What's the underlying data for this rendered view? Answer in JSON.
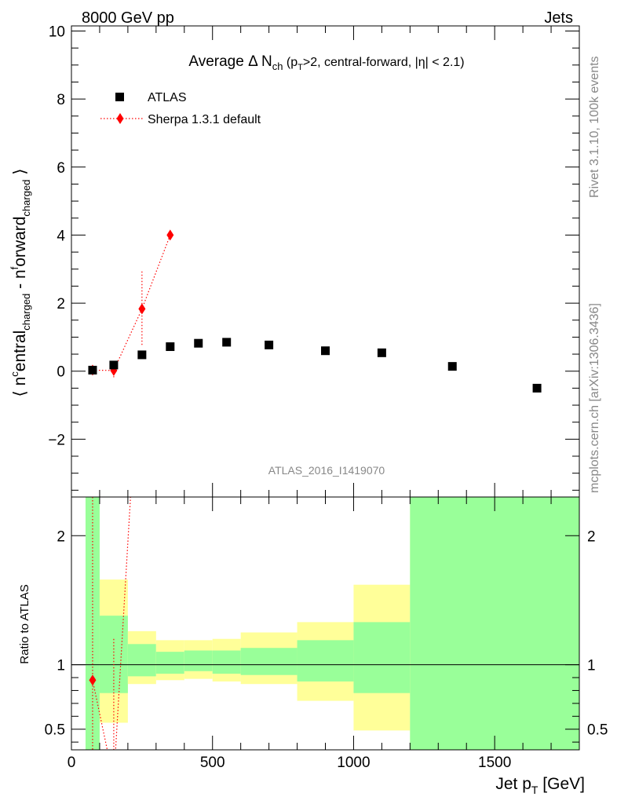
{
  "header": {
    "left": "8000 GeV pp",
    "right": "Jets"
  },
  "side_text": {
    "rivet": "Rivet 3.1.10,  100k events",
    "mcplots": "mcplots.cern.ch [arXiv:1306.3436]"
  },
  "watermark": "ATLAS_2016_I1419070",
  "colors": {
    "atlas": "#000000",
    "sherpa": "#ff0000",
    "band_inner": "#99ff99",
    "band_outer": "#ffff99"
  },
  "chart_data": [
    {
      "type": "scatter",
      "title": {
        "pre": "Average ",
        "delta": "Δ",
        "n": " N",
        "n_sub": "ch",
        "cond_a": " (p",
        "cond_sub": "T",
        "cond_b": ">2, central-forward, |η| < 2.1)"
      },
      "ylabel": {
        "bracket_open": "⟨ n",
        "sup1": "c",
        "mid1": "entral",
        "sub1": "charged",
        "mid2": " - n",
        "sup2": "f",
        "mid3": "orward",
        "sub2": "charged",
        "bracket_close": " ⟩"
      },
      "xlim": [
        0,
        1800
      ],
      "ylim": [
        -3.7,
        10.15
      ],
      "yticks": [
        -2,
        0,
        2,
        4,
        6,
        8,
        10
      ],
      "ytick_labels": [
        "−2",
        "0",
        "2",
        "4",
        "6",
        "8",
        "10"
      ],
      "legend": {
        "position": "top-left"
      },
      "series": [
        {
          "name": "ATLAS",
          "marker": "square",
          "points": [
            {
              "x": 75,
              "y": 0.03
            },
            {
              "x": 150,
              "y": 0.18
            },
            {
              "x": 250,
              "y": 0.48
            },
            {
              "x": 350,
              "y": 0.72
            },
            {
              "x": 450,
              "y": 0.82
            },
            {
              "x": 550,
              "y": 0.85
            },
            {
              "x": 700,
              "y": 0.77
            },
            {
              "x": 900,
              "y": 0.6
            },
            {
              "x": 1100,
              "y": 0.54
            },
            {
              "x": 1350,
              "y": 0.14
            },
            {
              "x": 1650,
              "y": -0.5
            }
          ]
        },
        {
          "name": "Sherpa 1.3.1 default",
          "marker": "diamond",
          "line": "dotted",
          "points": [
            {
              "x": 75,
              "y": 0.03,
              "err": 0.03
            },
            {
              "x": 150,
              "y": 0.02,
              "err": 0.2
            },
            {
              "x": 250,
              "y": 1.83,
              "err": 1.1
            },
            {
              "x": 350,
              "y": 4.0,
              "err": 0.05
            }
          ]
        }
      ]
    },
    {
      "type": "area",
      "ylabel": "Ratio to ATLAS",
      "xlabel": {
        "pre": "Jet p",
        "sub": "T",
        "post": " [GeV]"
      },
      "xlim": [
        0,
        1800
      ],
      "ylim": [
        0.34,
        2.3
      ],
      "xticks": [
        0,
        500,
        1000,
        1500
      ],
      "xtick_labels": [
        "0",
        "500",
        "1000",
        "1500"
      ],
      "yticks": [
        0.5,
        1,
        2
      ],
      "ytick_labels": [
        "0.5",
        "1",
        "2"
      ],
      "reference_line": 1,
      "bands": [
        {
          "x0": 50,
          "x1": 100,
          "inner": [
            0.34,
            2.3
          ],
          "outer": [
            0.34,
            2.3
          ]
        },
        {
          "x0": 100,
          "x1": 200,
          "inner": [
            0.78,
            1.38
          ],
          "outer": [
            0.55,
            1.66
          ]
        },
        {
          "x0": 200,
          "x1": 300,
          "inner": [
            0.91,
            1.16
          ],
          "outer": [
            0.85,
            1.26
          ]
        },
        {
          "x0": 300,
          "x1": 400,
          "inner": [
            0.93,
            1.1
          ],
          "outer": [
            0.88,
            1.19
          ]
        },
        {
          "x0": 400,
          "x1": 500,
          "inner": [
            0.95,
            1.11
          ],
          "outer": [
            0.89,
            1.19
          ]
        },
        {
          "x0": 500,
          "x1": 600,
          "inner": [
            0.93,
            1.11
          ],
          "outer": [
            0.87,
            1.2
          ]
        },
        {
          "x0": 600,
          "x1": 800,
          "inner": [
            0.92,
            1.13
          ],
          "outer": [
            0.85,
            1.25
          ]
        },
        {
          "x0": 800,
          "x1": 1000,
          "inner": [
            0.87,
            1.19
          ],
          "outer": [
            0.72,
            1.33
          ]
        },
        {
          "x0": 1000,
          "x1": 1200,
          "inner": [
            0.78,
            1.33
          ],
          "outer": [
            0.49,
            1.62
          ]
        },
        {
          "x0": 1200,
          "x1": 1800,
          "inner": [
            0.34,
            2.3
          ],
          "outer": [
            0.34,
            2.3
          ]
        }
      ],
      "series": [
        {
          "name": "Sherpa 1.3.1 default",
          "points": [
            {
              "x": 75,
              "y": 0.88
            },
            {
              "x": 150,
              "y": 0.1
            },
            {
              "x": 250,
              "y": 3.8
            }
          ]
        }
      ]
    }
  ]
}
